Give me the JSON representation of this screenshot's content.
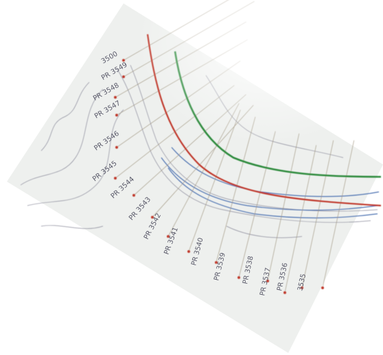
{
  "labels": [
    "3500",
    "PR 3549",
    "PR 3548",
    "PR 3547",
    "PR 3546",
    "PR 3545",
    "PR 3544",
    "PR 3543",
    "PR 3542",
    "PR 3541",
    "PR 3540",
    "PR 3539",
    "PR 3538",
    "PR 3537",
    "PR 3536",
    "3535"
  ]
}
